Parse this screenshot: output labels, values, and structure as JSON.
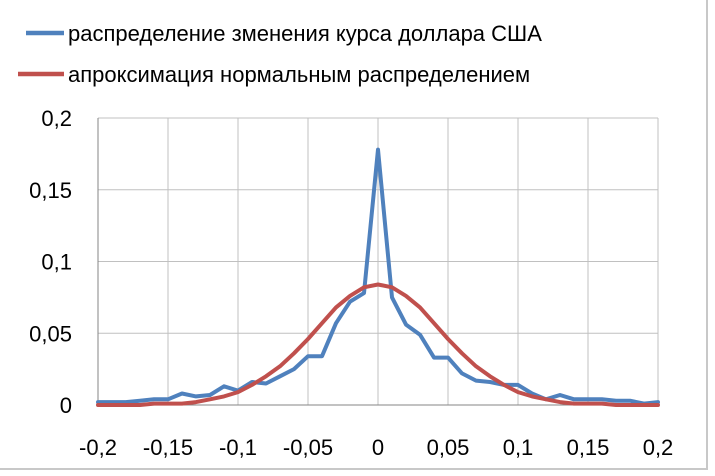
{
  "chart_data": {
    "type": "line",
    "title": "",
    "xlabel": "",
    "ylabel": "",
    "xlim": [
      -0.2,
      0.2
    ],
    "ylim": [
      0,
      0.2
    ],
    "grid": true,
    "legend_position": "top",
    "x_tick_labels": [
      "-0,2",
      "-0,15",
      "-0,1",
      "-0,05",
      "0",
      "0,05",
      "0,1",
      "0,15",
      "0,2"
    ],
    "y_tick_labels": [
      "0",
      "0,05",
      "0,1",
      "0,15",
      "0,2"
    ],
    "x_ticks": [
      -0.2,
      -0.15,
      -0.1,
      -0.05,
      0,
      0.05,
      0.1,
      0.15,
      0.2
    ],
    "y_ticks": [
      0,
      0.05,
      0.1,
      0.15,
      0.2
    ],
    "colors": {
      "series1": "#4f81bd",
      "series2": "#c0504d",
      "grid": "#c0c0c0"
    },
    "series": [
      {
        "name": "распределение зменения курса доллара США",
        "x": [
          -0.2,
          -0.19,
          -0.18,
          -0.17,
          -0.16,
          -0.15,
          -0.14,
          -0.13,
          -0.12,
          -0.11,
          -0.1,
          -0.09,
          -0.08,
          -0.07,
          -0.06,
          -0.05,
          -0.04,
          -0.03,
          -0.02,
          -0.01,
          0,
          0.01,
          0.02,
          0.03,
          0.04,
          0.05,
          0.06,
          0.07,
          0.08,
          0.09,
          0.1,
          0.11,
          0.12,
          0.13,
          0.14,
          0.15,
          0.16,
          0.17,
          0.18,
          0.19,
          0.2
        ],
        "y": [
          0.002,
          0.002,
          0.002,
          0.003,
          0.004,
          0.004,
          0.008,
          0.006,
          0.007,
          0.013,
          0.01,
          0.016,
          0.015,
          0.02,
          0.025,
          0.034,
          0.034,
          0.057,
          0.072,
          0.078,
          0.178,
          0.075,
          0.056,
          0.049,
          0.033,
          0.033,
          0.022,
          0.017,
          0.016,
          0.014,
          0.014,
          0.008,
          0.004,
          0.007,
          0.004,
          0.004,
          0.004,
          0.003,
          0.003,
          0.001,
          0.002
        ]
      },
      {
        "name": "апроксимация нормальным распределением",
        "x": [
          -0.2,
          -0.19,
          -0.18,
          -0.17,
          -0.16,
          -0.15,
          -0.14,
          -0.13,
          -0.12,
          -0.11,
          -0.1,
          -0.09,
          -0.08,
          -0.07,
          -0.06,
          -0.05,
          -0.04,
          -0.03,
          -0.02,
          -0.01,
          0,
          0.01,
          0.02,
          0.03,
          0.04,
          0.05,
          0.06,
          0.07,
          0.08,
          0.09,
          0.1,
          0.11,
          0.12,
          0.13,
          0.14,
          0.15,
          0.16,
          0.17,
          0.18,
          0.19,
          0.2
        ],
        "y": [
          0,
          0,
          0,
          0,
          0.001,
          0.001,
          0.001,
          0.002,
          0.004,
          0.006,
          0.009,
          0.014,
          0.02,
          0.027,
          0.036,
          0.046,
          0.057,
          0.068,
          0.076,
          0.082,
          0.084,
          0.082,
          0.076,
          0.068,
          0.057,
          0.046,
          0.036,
          0.027,
          0.02,
          0.014,
          0.009,
          0.006,
          0.004,
          0.002,
          0.001,
          0.001,
          0.001,
          0,
          0,
          0,
          0
        ]
      }
    ]
  }
}
